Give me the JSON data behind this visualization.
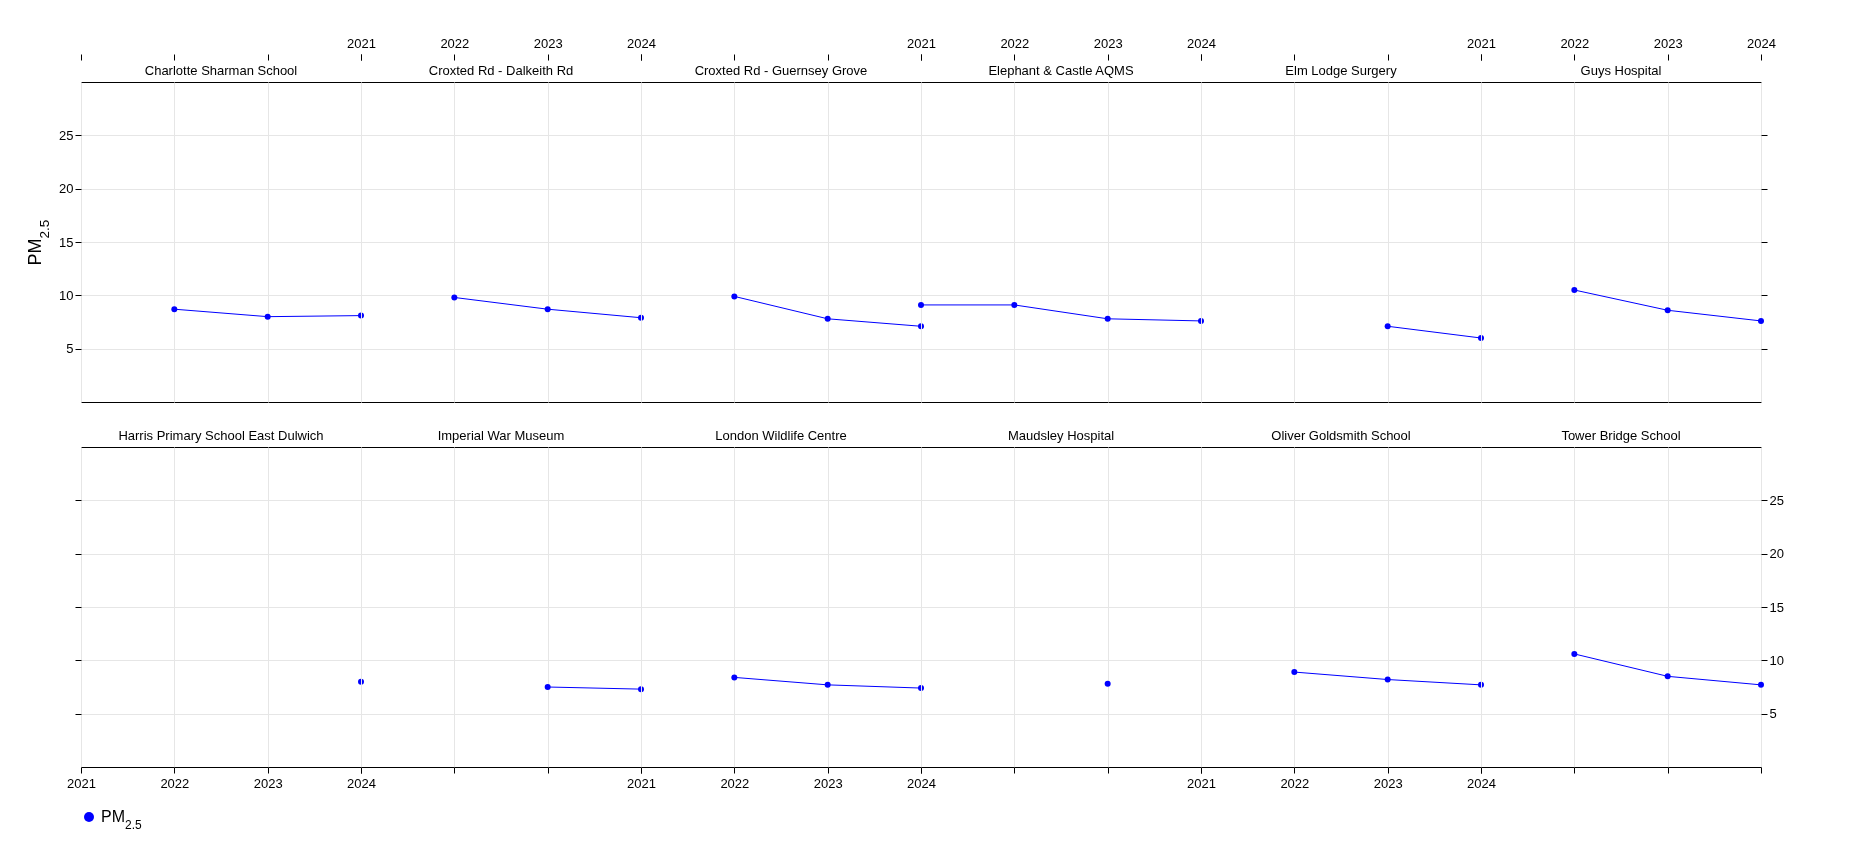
{
  "chart_data": [
    {
      "type": "line",
      "title": "Charlotte Sharman School",
      "ylabel": "PM$_{2.5}$",
      "x": [
        2022,
        2023,
        2024
      ],
      "series": [
        {
          "name": "PM$_{2.5}$",
          "color": "#0000ff",
          "values": [
            8.7,
            8.0,
            8.1
          ]
        }
      ],
      "xlim": [
        2021,
        2024
      ],
      "xticks": [
        2021,
        2022,
        2023,
        2024
      ],
      "ylim": [
        0,
        30
      ],
      "yticks": [
        5,
        10,
        15,
        20,
        25
      ],
      "grid": true,
      "marker": "circle",
      "line_style": "solid",
      "legend": "bottom",
      "tick_labels": "y"
    },
    {
      "type": "line",
      "title": "Croxted Rd - Dalkeith Rd",
      "x": [
        2022,
        2023,
        2024
      ],
      "series": [
        {
          "color": "#0000ff",
          "values": [
            9.8,
            8.7,
            7.9
          ]
        }
      ],
      "xlim": [
        2021,
        2024
      ],
      "xticks": [
        2021,
        2022,
        2023,
        2024
      ],
      "ylim": [
        0,
        30
      ],
      "yticks": [
        5,
        10,
        15,
        20,
        25
      ],
      "grid": true,
      "marker": "circle",
      "line_style": "solid",
      "tick_labels": "x"
    },
    {
      "type": "line",
      "title": "Croxted Rd - Guernsey Grove",
      "x": [
        2022,
        2023,
        2024
      ],
      "series": [
        {
          "color": "#0000ff",
          "values": [
            9.9,
            7.8,
            7.1
          ]
        }
      ],
      "xlim": [
        2021,
        2024
      ],
      "xticks": [
        2021,
        2022,
        2023,
        2024
      ],
      "ylim": [
        0,
        30
      ],
      "yticks": [
        5,
        10,
        15,
        20,
        25
      ],
      "grid": true,
      "marker": "circle",
      "line_style": "solid",
      "tick_labels": false
    },
    {
      "type": "line",
      "title": "Elephant & Castle AQMS",
      "x": [
        2021,
        2022,
        2023,
        2024
      ],
      "series": [
        {
          "color": "#0000ff",
          "values": [
            9.1,
            9.1,
            7.8,
            7.6
          ]
        }
      ],
      "xlim": [
        2021,
        2024
      ],
      "xticks": [
        2021,
        2022,
        2023,
        2024
      ],
      "ylim": [
        0,
        30
      ],
      "yticks": [
        5,
        10,
        15,
        20,
        25
      ],
      "grid": true,
      "marker": "circle",
      "line_style": "solid",
      "tick_labels": "x"
    },
    {
      "type": "line",
      "title": "Elm Lodge Surgery",
      "x": [
        2023,
        2024
      ],
      "series": [
        {
          "color": "#0000ff",
          "values": [
            7.1,
            6.0
          ]
        }
      ],
      "xlim": [
        2021,
        2024
      ],
      "xticks": [
        2021,
        2022,
        2023,
        2024
      ],
      "ylim": [
        0,
        30
      ],
      "yticks": [
        5,
        10,
        15,
        20,
        25
      ],
      "grid": true,
      "marker": "circle",
      "line_style": "solid",
      "tick_labels": false
    },
    {
      "type": "line",
      "title": "Guys Hospital",
      "x": [
        2022,
        2023,
        2024
      ],
      "series": [
        {
          "color": "#0000ff",
          "values": [
            10.5,
            8.6,
            7.6
          ]
        }
      ],
      "xlim": [
        2021,
        2024
      ],
      "xticks": [
        2021,
        2022,
        2023,
        2024
      ],
      "ylim": [
        0,
        30
      ],
      "yticks": [
        5,
        10,
        15,
        20,
        25
      ],
      "grid": true,
      "marker": "circle",
      "line_style": "solid",
      "tick_labels": "x"
    },
    {
      "type": "line",
      "title": "Harris Primary School East Dulwich",
      "x": [
        2024
      ],
      "series": [
        {
          "color": "#0000ff",
          "values": [
            8.0
          ]
        }
      ],
      "xlim": [
        2021,
        2024
      ],
      "xticks": [
        2021,
        2022,
        2023,
        2024
      ],
      "ylim": [
        0,
        30
      ],
      "yticks": [
        5,
        10,
        15,
        20,
        25
      ],
      "grid": true,
      "marker": "circle",
      "line_style": "solid",
      "tick_labels": "x"
    },
    {
      "type": "line",
      "title": "Imperial War Museum",
      "x": [
        2023,
        2024
      ],
      "series": [
        {
          "color": "#0000ff",
          "values": [
            7.5,
            7.3
          ]
        }
      ],
      "xlim": [
        2021,
        2024
      ],
      "xticks": [
        2021,
        2022,
        2023,
        2024
      ],
      "ylim": [
        0,
        30
      ],
      "yticks": [
        5,
        10,
        15,
        20,
        25
      ],
      "grid": true,
      "marker": "circle",
      "line_style": "solid",
      "tick_labels": false
    },
    {
      "type": "line",
      "title": "London Wildlife Centre",
      "x": [
        2022,
        2023,
        2024
      ],
      "series": [
        {
          "color": "#0000ff",
          "values": [
            8.4,
            7.7,
            7.4
          ]
        }
      ],
      "xlim": [
        2021,
        2024
      ],
      "xticks": [
        2021,
        2022,
        2023,
        2024
      ],
      "ylim": [
        0,
        30
      ],
      "yticks": [
        5,
        10,
        15,
        20,
        25
      ],
      "grid": true,
      "marker": "circle",
      "line_style": "solid",
      "tick_labels": "x"
    },
    {
      "type": "line",
      "title": "Maudsley Hospital",
      "x": [
        2023
      ],
      "series": [
        {
          "color": "#0000ff",
          "values": [
            7.8
          ]
        }
      ],
      "xlim": [
        2021,
        2024
      ],
      "xticks": [
        2021,
        2022,
        2023,
        2024
      ],
      "ylim": [
        0,
        30
      ],
      "yticks": [
        5,
        10,
        15,
        20,
        25
      ],
      "grid": true,
      "marker": "circle",
      "line_style": "solid",
      "tick_labels": false
    },
    {
      "type": "line",
      "title": "Oliver Goldsmith School",
      "x": [
        2022,
        2023,
        2024
      ],
      "series": [
        {
          "color": "#0000ff",
          "values": [
            8.9,
            8.2,
            7.7
          ]
        }
      ],
      "xlim": [
        2021,
        2024
      ],
      "xticks": [
        2021,
        2022,
        2023,
        2024
      ],
      "ylim": [
        0,
        30
      ],
      "yticks": [
        5,
        10,
        15,
        20,
        25
      ],
      "grid": true,
      "marker": "circle",
      "line_style": "solid",
      "tick_labels": "x"
    },
    {
      "type": "line",
      "title": "Tower Bridge School",
      "x": [
        2022,
        2023,
        2024
      ],
      "series": [
        {
          "color": "#0000ff",
          "values": [
            10.6,
            8.5,
            7.7
          ]
        }
      ],
      "xlim": [
        2021,
        2024
      ],
      "xticks": [
        2021,
        2022,
        2023,
        2024
      ],
      "ylim": [
        0,
        30
      ],
      "yticks": [
        5,
        10,
        15,
        20,
        25
      ],
      "grid": true,
      "marker": "circle",
      "line_style": "solid",
      "tick_labels": "y"
    }
  ]
}
